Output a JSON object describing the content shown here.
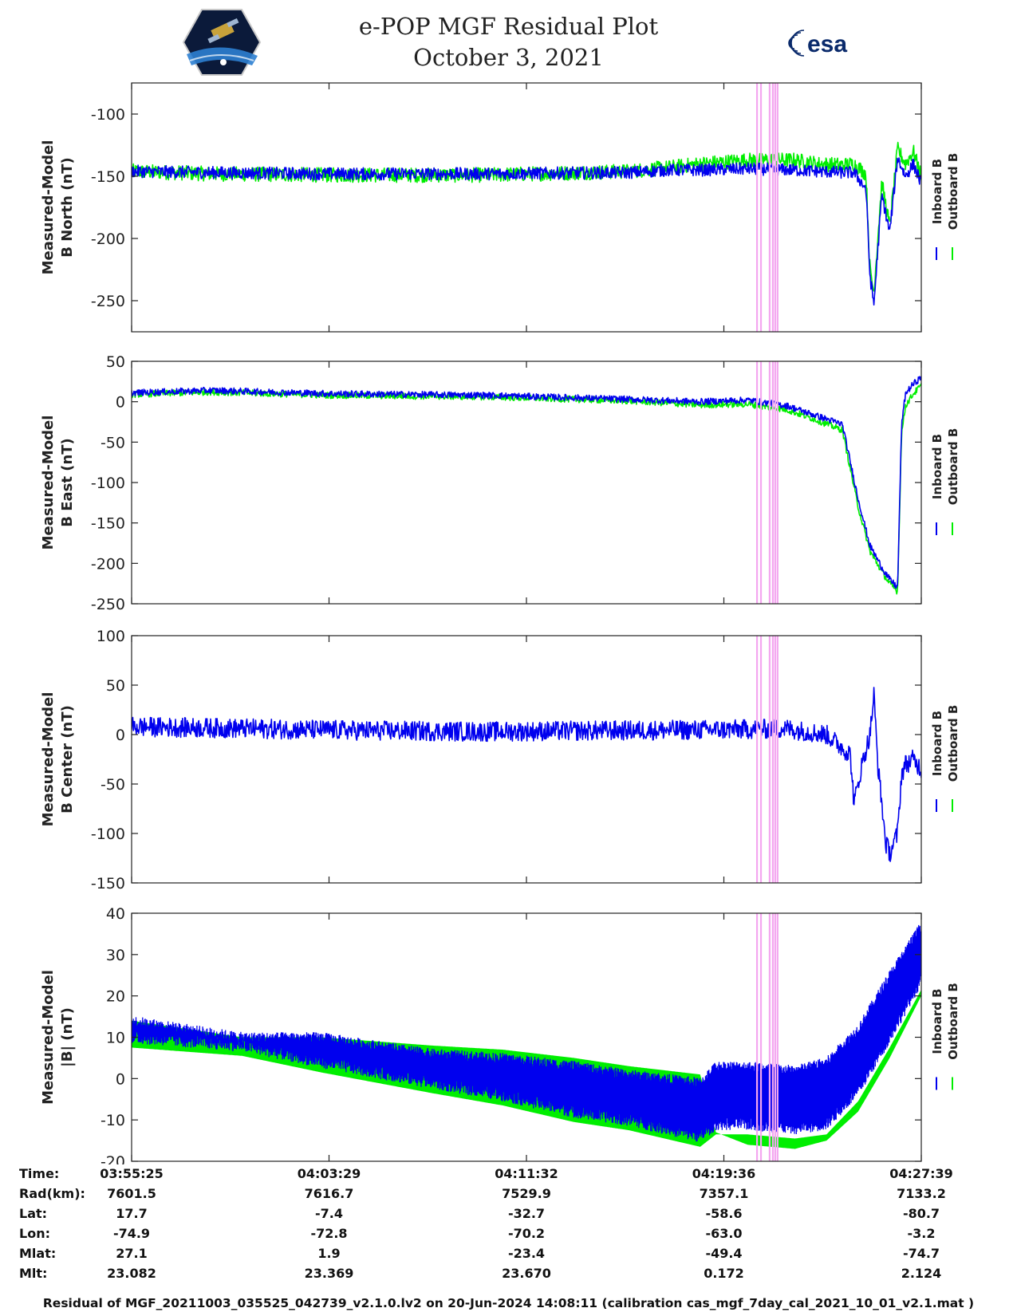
{
  "title": {
    "line1": "e-POP MGF Residual Plot",
    "line2": "October 3, 2021"
  },
  "logos": {
    "left": "CASSIOPE",
    "right": "esa"
  },
  "colors": {
    "inboard": "#0000ee",
    "outboard": "#00ee00",
    "marker": "#f4a6f0",
    "axis": "#222222"
  },
  "legend": {
    "inboard": "Inboard B",
    "outboard": "Outboard B"
  },
  "time_ticks": [
    "03:55:25",
    "04:03:29",
    "04:11:32",
    "04:19:36",
    "04:27:39"
  ],
  "info": {
    "rows": [
      {
        "label": "Time:",
        "values": [
          "03:55:25",
          "04:03:29",
          "04:11:32",
          "04:19:36",
          "04:27:39"
        ]
      },
      {
        "label": "Rad(km):",
        "values": [
          "7601.5",
          "7616.7",
          "7529.9",
          "7357.1",
          "7133.2"
        ]
      },
      {
        "label": "Lat:",
        "values": [
          "17.7",
          "-7.4",
          "-32.7",
          "-58.6",
          "-80.7"
        ]
      },
      {
        "label": "Lon:",
        "values": [
          "-74.9",
          "-72.8",
          "-70.2",
          "-63.0",
          "-3.2"
        ]
      },
      {
        "label": "Mlat:",
        "values": [
          "27.1",
          "1.9",
          "-23.4",
          "-49.4",
          "-74.7"
        ]
      },
      {
        "label": "Mlt:",
        "values": [
          "23.082",
          "23.369",
          "23.670",
          "0.172",
          "2.124"
        ]
      }
    ]
  },
  "footer": "Residual of MGF_20211003_035525_042739_v2.1.0.lv2 on 20-Jun-2024 14:08:11 (calibration cas_mgf_7day_cal_2021_10_01_v2.1.mat )",
  "chart_data": [
    {
      "type": "line",
      "id": "north",
      "ylabel_line1": "Measured-Model",
      "ylabel_line2": "B North (nT)",
      "ylim": [
        -275,
        -75
      ],
      "yticks": [
        -100,
        -150,
        -200,
        -250
      ],
      "x_unit": "fraction of time span (0 = 03:55:25, 1 = 04:27:39)",
      "series": [
        {
          "name": "Outboard B",
          "x": [
            0,
            0.1,
            0.25,
            0.45,
            0.63,
            0.68,
            0.72,
            0.78,
            0.84,
            0.87,
            0.9,
            0.915,
            0.93,
            0.935,
            0.94,
            0.95,
            0.96,
            0.97,
            0.98,
            0.99,
            1.0
          ],
          "y": [
            -146,
            -148,
            -149,
            -149,
            -146,
            -143,
            -140,
            -137,
            -137,
            -140,
            -141,
            -140,
            -148,
            -225,
            -243,
            -155,
            -190,
            -128,
            -140,
            -130,
            -150
          ],
          "band": 6
        },
        {
          "name": "Inboard B",
          "x": [
            0,
            0.1,
            0.25,
            0.45,
            0.63,
            0.68,
            0.72,
            0.78,
            0.84,
            0.87,
            0.9,
            0.915,
            0.93,
            0.935,
            0.94,
            0.95,
            0.96,
            0.97,
            0.98,
            0.99,
            1.0
          ],
          "y": [
            -146,
            -147,
            -148,
            -148,
            -147,
            -145,
            -145,
            -144,
            -145,
            -146,
            -147,
            -147,
            -160,
            -230,
            -253,
            -165,
            -195,
            -135,
            -150,
            -140,
            -156
          ],
          "band": 5
        }
      ]
    },
    {
      "type": "line",
      "id": "east",
      "ylabel_line1": "Measured-Model",
      "ylabel_line2": "B East (nT)",
      "ylim": [
        -250,
        50
      ],
      "yticks": [
        50,
        0,
        -50,
        -100,
        -150,
        -200,
        -250
      ],
      "series": [
        {
          "name": "Outboard B",
          "x": [
            0,
            0.1,
            0.25,
            0.45,
            0.63,
            0.72,
            0.78,
            0.83,
            0.86,
            0.9,
            0.92,
            0.935,
            0.95,
            0.96,
            0.97,
            0.975,
            0.98,
            0.99,
            1.0
          ],
          "y": [
            9,
            12,
            8,
            6,
            1,
            -4,
            -3,
            -10,
            -20,
            -35,
            -130,
            -185,
            -210,
            -225,
            -235,
            -40,
            -5,
            10,
            20
          ],
          "band": 4
        },
        {
          "name": "Inboard B",
          "x": [
            0,
            0.1,
            0.25,
            0.45,
            0.63,
            0.72,
            0.78,
            0.83,
            0.86,
            0.9,
            0.92,
            0.935,
            0.95,
            0.96,
            0.97,
            0.975,
            0.98,
            0.99,
            1.0
          ],
          "y": [
            11,
            14,
            10,
            8,
            3,
            0,
            2,
            -5,
            -15,
            -28,
            -120,
            -178,
            -205,
            -220,
            -230,
            -30,
            10,
            22,
            30
          ],
          "band": 4
        }
      ]
    },
    {
      "type": "line",
      "id": "center",
      "ylabel_line1": "Measured-Model",
      "ylabel_line2": "B Center (nT)",
      "ylim": [
        -150,
        100
      ],
      "yticks": [
        100,
        50,
        0,
        -50,
        -100,
        -150
      ],
      "series": [
        {
          "name": "Inboard B",
          "x": [
            0,
            0.15,
            0.3,
            0.45,
            0.6,
            0.75,
            0.83,
            0.88,
            0.91,
            0.915,
            0.925,
            0.935,
            0.94,
            0.945,
            0.955,
            0.96,
            0.97,
            0.975,
            0.98,
            0.99,
            1.0
          ],
          "y": [
            8,
            6,
            4,
            3,
            4,
            5,
            6,
            0,
            -20,
            -70,
            -30,
            0,
            40,
            -30,
            -110,
            -120,
            -100,
            -40,
            -30,
            -25,
            -35
          ],
          "band": 10
        }
      ]
    },
    {
      "type": "line",
      "id": "total",
      "ylabel_line1": "Measured-Model",
      "ylabel_line2": "|B| (nT)",
      "ylim": [
        -20,
        40
      ],
      "yticks": [
        40,
        30,
        20,
        10,
        0,
        -10,
        -20
      ],
      "series": [
        {
          "name": "Outboard B",
          "x": [
            0,
            0.14,
            0.24,
            0.38,
            0.47,
            0.56,
            0.63,
            0.72,
            0.74,
            0.78,
            0.84,
            0.88,
            0.92,
            0.96,
            1.0
          ],
          "y": [
            14,
            10,
            10,
            8,
            7,
            5,
            3,
            1,
            -13,
            -16,
            -17,
            -15,
            -8,
            5,
            20
          ]
        },
        {
          "name": "Inboard B",
          "x": [
            0,
            0.14,
            0.24,
            0.38,
            0.47,
            0.56,
            0.63,
            0.72,
            0.74,
            0.78,
            0.84,
            0.88,
            0.92,
            0.96,
            1.0
          ],
          "y": [
            14,
            10,
            10,
            6,
            5,
            3,
            1,
            -1,
            3,
            3,
            2,
            4,
            12,
            25,
            37
          ]
        }
      ],
      "inboard_lower_edge_y": [
        10,
        8,
        4,
        -1,
        -4,
        -8,
        -10,
        -14,
        -11,
        -11,
        -12,
        -11,
        -3,
        10,
        24
      ]
    }
  ],
  "marker_lines_x": [
    0.792,
    0.797,
    0.808,
    0.812,
    0.815,
    0.818
  ]
}
